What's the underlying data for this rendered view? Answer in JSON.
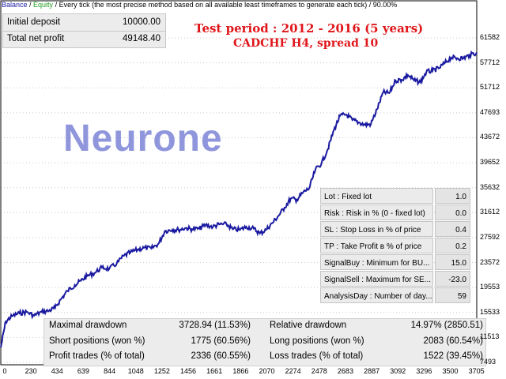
{
  "header": {
    "balance": "Balance",
    "sep": " / ",
    "equity": "Equity",
    "rest": " / Every tick (the most precise method based on all available least timeframes to generate each tick)  / 90.00%"
  },
  "deposit_table": {
    "rows": [
      {
        "label": "Initial deposit",
        "value": "10000.00"
      },
      {
        "label": "Total net profit",
        "value": "49148.40"
      }
    ]
  },
  "title": {
    "line1": "Test period : 2012 - 2016 (5 years)",
    "line2": "CADCHF H4, spread 10"
  },
  "watermark": "Neurone",
  "params": [
    {
      "label": "Lot : Fixed lot",
      "value": "1.0"
    },
    {
      "label": "Risk : Risk in % (0 - fixed lot)",
      "value": "0.0"
    },
    {
      "label": "SL : Stop Loss in % of price",
      "value": "0.4"
    },
    {
      "label": "TP : Take Profit в % of price",
      "value": "0.2"
    },
    {
      "label": "SignalBuy : Minimum for BU...",
      "value": "15.0"
    },
    {
      "label": "SignalSell : Maximum for SE...",
      "value": "-23.0"
    },
    {
      "label": "AnalysisDay : Number of day...",
      "value": "59"
    }
  ],
  "stats": {
    "maximal_drawdown_label": "Maximal drawdown",
    "maximal_drawdown_value": "3728.94 (11.53%)",
    "relative_drawdown_label": "Relative drawdown",
    "relative_drawdown_value": "14.97% (2850.51)",
    "short_label": "Short positions (won %)",
    "short_value": "1775 (60.56%)",
    "long_label": "Long positions (won %)",
    "long_value": "2083 (60.54%)",
    "profit_label": "Profit trades (% of total)",
    "profit_value": "2336 (60.55%)",
    "loss_label": "Loss trades (% of total)",
    "loss_value": "1522 (39.45%)"
  },
  "colors": {
    "line": "#1a1aa0",
    "title": "#e0161a",
    "watermark": "#8f96dc"
  },
  "chart_data": {
    "type": "line",
    "x_ticks": [
      "0",
      "230",
      "434",
      "639",
      "844",
      "1048",
      "1252",
      "1456",
      "1661",
      "1866",
      "2070",
      "2274",
      "2478",
      "2683",
      "2887",
      "3092",
      "3296",
      "3500",
      "3705"
    ],
    "y_ticks": [
      "61582",
      "57712",
      "51712",
      "47693",
      "43672",
      "39652",
      "35632",
      "31612",
      "27592",
      "23572",
      "19553",
      "15533",
      "11513",
      "7493"
    ],
    "x_range": [
      0,
      3858
    ],
    "y_range": [
      7493,
      61582
    ],
    "series": [
      {
        "x": [
          0,
          40,
          90,
          150,
          210,
          270,
          330,
          390,
          440,
          490,
          540,
          600,
          650,
          700,
          760,
          820,
          880,
          940,
          1000,
          1050,
          1110,
          1160,
          1220,
          1280,
          1330,
          1390,
          1440,
          1500,
          1550,
          1610,
          1660,
          1720,
          1770,
          1830,
          1880,
          1940,
          1990,
          2050,
          2100,
          2150,
          2200,
          2250,
          2300,
          2350,
          2400,
          2450,
          2500,
          2550,
          2600,
          2650,
          2700,
          2750,
          2800,
          2850,
          2900,
          2950,
          3000,
          3050,
          3100,
          3150,
          3200,
          3250,
          3300,
          3350,
          3400,
          3450,
          3500,
          3550,
          3600,
          3650,
          3700,
          3750,
          3800,
          3858
        ],
        "y": [
          10000,
          14300,
          15200,
          15700,
          15900,
          15300,
          15900,
          16100,
          16600,
          18100,
          19400,
          20400,
          21100,
          21900,
          22400,
          23300,
          23100,
          24000,
          25300,
          25800,
          26300,
          26600,
          26500,
          27300,
          29400,
          29600,
          29600,
          29900,
          29700,
          29800,
          30400,
          30100,
          30500,
          30500,
          29700,
          29600,
          30100,
          29800,
          29000,
          29600,
          30700,
          31900,
          33300,
          34800,
          34600,
          35800,
          36500,
          39600,
          40700,
          43000,
          46200,
          48600,
          48800,
          47900,
          47500,
          47100,
          47200,
          49700,
          52500,
          52400,
          54500,
          54600,
          55400,
          54500,
          54200,
          55900,
          56100,
          56500,
          57400,
          58300,
          58200,
          58200,
          58700,
          59148
        ]
      }
    ]
  }
}
